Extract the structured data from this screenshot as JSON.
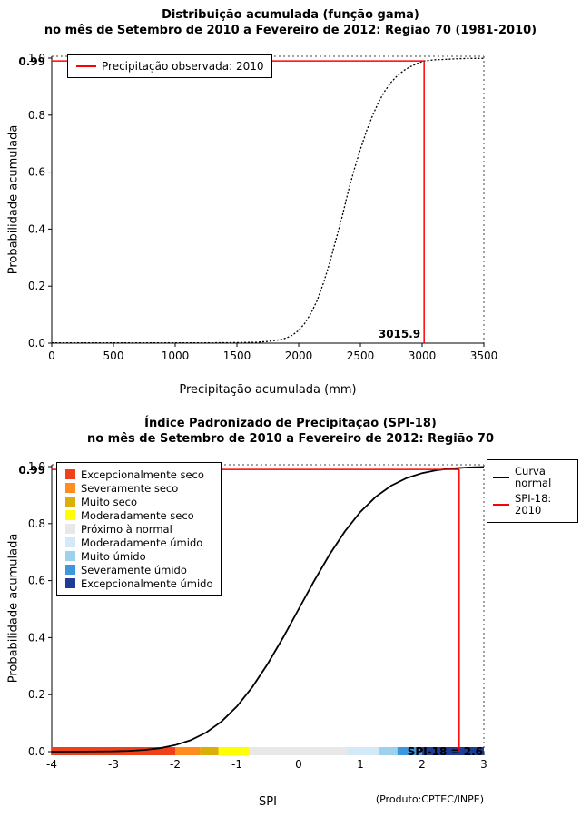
{
  "chart_data": [
    {
      "id": "gamma-cdf",
      "type": "line",
      "title_line1": "Distribuição acumulada (função gama)",
      "title_line2": "no mês de Setembro de 2010 a Fevereiro de 2012: Região 70 (1981-2010)",
      "xlabel": "Precipitação acumulada (mm)",
      "ylabel": "Probabilidade acumulada",
      "xlim": [
        0,
        3500
      ],
      "ylim": [
        0,
        1
      ],
      "x_ticks": [
        0,
        500,
        1000,
        1500,
        2000,
        2500,
        3000,
        3500
      ],
      "y_ticks": [
        0,
        0.2,
        0.4,
        0.6,
        0.8,
        1
      ],
      "y_annotation": "0.99",
      "grid": false,
      "curve": {
        "name": "Distribuição acumulada (função gama)",
        "color": "#000000",
        "dash": "2,2",
        "width": 1.3,
        "points": [
          [
            0,
            0.001
          ],
          [
            400,
            0.001
          ],
          [
            800,
            0.001
          ],
          [
            1200,
            0.001
          ],
          [
            1500,
            0.002
          ],
          [
            1650,
            0.003
          ],
          [
            1750,
            0.006
          ],
          [
            1850,
            0.012
          ],
          [
            1900,
            0.018
          ],
          [
            1950,
            0.028
          ],
          [
            2000,
            0.045
          ],
          [
            2050,
            0.07
          ],
          [
            2100,
            0.105
          ],
          [
            2150,
            0.15
          ],
          [
            2200,
            0.21
          ],
          [
            2250,
            0.28
          ],
          [
            2300,
            0.36
          ],
          [
            2350,
            0.44
          ],
          [
            2400,
            0.53
          ],
          [
            2450,
            0.61
          ],
          [
            2500,
            0.68
          ],
          [
            2550,
            0.745
          ],
          [
            2600,
            0.8
          ],
          [
            2650,
            0.848
          ],
          [
            2700,
            0.886
          ],
          [
            2750,
            0.916
          ],
          [
            2800,
            0.939
          ],
          [
            2850,
            0.956
          ],
          [
            2900,
            0.969
          ],
          [
            2950,
            0.979
          ],
          [
            3000,
            0.988
          ],
          [
            3015.9,
            0.99
          ],
          [
            3100,
            0.994
          ],
          [
            3200,
            0.996
          ],
          [
            3300,
            0.998
          ],
          [
            3400,
            0.999
          ],
          [
            3500,
            0.999
          ]
        ]
      },
      "reference": {
        "color": "#FF0000",
        "x": 3015.9,
        "y": 0.99,
        "label": "3015.9",
        "label_position": "at-line"
      },
      "legend": {
        "items": [
          {
            "label": "Precipitação observada: 2010",
            "color": "#FF0000"
          }
        ]
      }
    },
    {
      "id": "spi-cdf",
      "type": "line",
      "title_line1": "Índice Padronizado de Precipitação (SPI-18)",
      "title_line2": "no mês de Setembro de 2010 a Fevereiro de 2012: Região 70",
      "xlabel": "SPI",
      "ylabel": "Probabilidade acumulada",
      "footnote": "(Produto:CPTEC/INPE)",
      "xlim": [
        -4,
        3
      ],
      "ylim": [
        0,
        1
      ],
      "x_ticks": [
        -4,
        -3,
        -2,
        -1,
        0,
        1,
        2,
        3
      ],
      "y_ticks": [
        0,
        0.2,
        0.4,
        0.6,
        0.8,
        1
      ],
      "y_annotation": "0.99",
      "grid": false,
      "curve": {
        "name": "Curva normal",
        "color": "#000000",
        "width": 1.8,
        "points": [
          [
            -4,
            0.0
          ],
          [
            -3.5,
            0.0002
          ],
          [
            -3,
            0.0013
          ],
          [
            -2.75,
            0.003
          ],
          [
            -2.5,
            0.0062
          ],
          [
            -2.25,
            0.0122
          ],
          [
            -2,
            0.0228
          ],
          [
            -1.75,
            0.0401
          ],
          [
            -1.5,
            0.0668
          ],
          [
            -1.25,
            0.1056
          ],
          [
            -1,
            0.1587
          ],
          [
            -0.75,
            0.2266
          ],
          [
            -0.5,
            0.3085
          ],
          [
            -0.25,
            0.4013
          ],
          [
            0,
            0.5
          ],
          [
            0.25,
            0.5987
          ],
          [
            0.5,
            0.6915
          ],
          [
            0.75,
            0.7734
          ],
          [
            1,
            0.8413
          ],
          [
            1.25,
            0.8944
          ],
          [
            1.5,
            0.9332
          ],
          [
            1.75,
            0.9599
          ],
          [
            2,
            0.9772
          ],
          [
            2.25,
            0.9878
          ],
          [
            2.5,
            0.9938
          ],
          [
            2.75,
            0.997
          ],
          [
            3,
            0.9987
          ]
        ]
      },
      "reference": {
        "color": "#FF0000",
        "x": 2.6,
        "y": 0.99,
        "label": "SPI-18 = 2.6",
        "label_position": "plot-right"
      },
      "categories": [
        {
          "label": "Excepcionalmente seco",
          "color": "#F0401A"
        },
        {
          "label": "Severamente seco",
          "color": "#FF8C1E"
        },
        {
          "label": "Muito seco",
          "color": "#DCAE0A"
        },
        {
          "label": "Moderadamente seco",
          "color": "#FFFF00"
        },
        {
          "label": "Próximo à normal",
          "color": "#E8E8E8"
        },
        {
          "label": "Moderadamente úmido",
          "color": "#D2E9F7"
        },
        {
          "label": "Muito úmido",
          "color": "#9CD2EE"
        },
        {
          "label": "Severamente úmido",
          "color": "#3E96DC"
        },
        {
          "label": "Excepcionalmente úmido",
          "color": "#1E3C96"
        }
      ],
      "category_bar": [
        {
          "from": -4,
          "to": -2,
          "color": "#F0401A"
        },
        {
          "from": -2,
          "to": -1.6,
          "color": "#FF8C1E"
        },
        {
          "from": -1.6,
          "to": -1.3,
          "color": "#DCAE0A"
        },
        {
          "from": -1.3,
          "to": -0.8,
          "color": "#FFFF00"
        },
        {
          "from": -0.8,
          "to": 0.8,
          "color": "#E8E8E8"
        },
        {
          "from": 0.8,
          "to": 1.3,
          "color": "#D2E9F7"
        },
        {
          "from": 1.3,
          "to": 1.6,
          "color": "#9CD2EE"
        },
        {
          "from": 1.6,
          "to": 2,
          "color": "#3E96DC"
        },
        {
          "from": 2,
          "to": 3,
          "color": "#1E3C96"
        }
      ],
      "line_legend": {
        "items": [
          {
            "label": "Curva normal",
            "color": "#000000"
          },
          {
            "label": "SPI-18: 2010",
            "color": "#FF0000"
          }
        ]
      }
    }
  ]
}
